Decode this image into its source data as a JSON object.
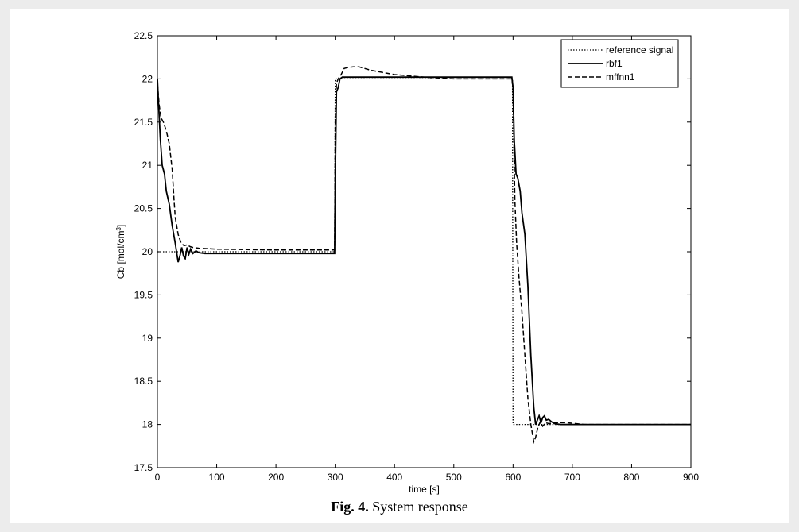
{
  "caption": {
    "prefix": "Fig. 4.",
    "text": "System response"
  },
  "chart_data": {
    "type": "line",
    "title": "",
    "xlabel": "time [s]",
    "ylabel": "Cb [mol/cm",
    "ylabel_sup": "3",
    "ylabel_suffix": "]",
    "xlim": [
      0,
      900
    ],
    "ylim": [
      17.5,
      22.5
    ],
    "xticks": [
      0,
      100,
      200,
      300,
      400,
      500,
      600,
      700,
      800,
      900
    ],
    "yticks": [
      17.5,
      18,
      18.5,
      19,
      19.5,
      20,
      20.5,
      21,
      21.5,
      22,
      22.5
    ],
    "ytick_labels": [
      "17.5",
      "18",
      "18.5",
      "19",
      "19.5",
      "20",
      "20.5",
      "21",
      "21.5",
      "22",
      "22.5"
    ],
    "grid": false,
    "legend_position": "top-right",
    "series": [
      {
        "name": "reference signal",
        "style": "dotted",
        "x": [
          0,
          299,
          300,
          599,
          600,
          900
        ],
        "y": [
          20,
          20,
          22,
          22,
          18,
          18
        ]
      },
      {
        "name": "rbf1",
        "style": "solid",
        "x": [
          0,
          2,
          5,
          8,
          12,
          15,
          20,
          25,
          30,
          35,
          38,
          41,
          44,
          47,
          50,
          53,
          56,
          60,
          65,
          70,
          80,
          100,
          200,
          299,
          300,
          302,
          305,
          308,
          312,
          320,
          400,
          500,
          598,
          600,
          602,
          605,
          608,
          612,
          615,
          620,
          625,
          630,
          635,
          638,
          641,
          644,
          647,
          650,
          653,
          656,
          660,
          665,
          670,
          680,
          700,
          800,
          900
        ],
        "y": [
          22.0,
          21.7,
          21.3,
          21.0,
          20.9,
          20.7,
          20.55,
          20.3,
          20.1,
          19.88,
          19.95,
          20.05,
          19.95,
          19.92,
          20.05,
          19.97,
          20.03,
          19.98,
          20.01,
          19.99,
          19.98,
          19.98,
          19.98,
          19.98,
          20.8,
          21.85,
          21.9,
          22.0,
          22.02,
          22.02,
          22.02,
          22.02,
          22.02,
          21.9,
          21.3,
          20.9,
          20.85,
          20.7,
          20.45,
          20.2,
          19.6,
          18.8,
          18.2,
          18.0,
          18.05,
          18.1,
          18.02,
          18.08,
          18.1,
          18.05,
          18.06,
          18.03,
          18.01,
          18.0,
          18.0,
          18.0,
          18.0
        ]
      },
      {
        "name": "mffnn1",
        "style": "dashed",
        "x": [
          0,
          3,
          6,
          10,
          15,
          20,
          25,
          28,
          30,
          35,
          40,
          45,
          50,
          55,
          60,
          70,
          100,
          200,
          299,
          300,
          302,
          305,
          310,
          315,
          320,
          330,
          340,
          360,
          400,
          450,
          500,
          598,
          600,
          603,
          606,
          610,
          615,
          620,
          625,
          630,
          635,
          638,
          642,
          646,
          650,
          655,
          660,
          670,
          690,
          720,
          800,
          900
        ],
        "y": [
          21.95,
          21.7,
          21.55,
          21.5,
          21.4,
          21.25,
          20.95,
          20.6,
          20.4,
          20.2,
          20.1,
          20.07,
          20.08,
          20.06,
          20.05,
          20.04,
          20.03,
          20.02,
          20.02,
          21.5,
          21.95,
          22.0,
          22.05,
          22.12,
          22.13,
          22.14,
          22.14,
          22.1,
          22.05,
          22.02,
          22.0,
          22.0,
          21.9,
          20.6,
          20.1,
          19.7,
          19.3,
          18.8,
          18.3,
          18.0,
          17.8,
          17.85,
          17.97,
          18.03,
          17.98,
          18.02,
          18.01,
          18.02,
          18.02,
          18.0,
          18.0,
          18.0
        ]
      }
    ]
  }
}
